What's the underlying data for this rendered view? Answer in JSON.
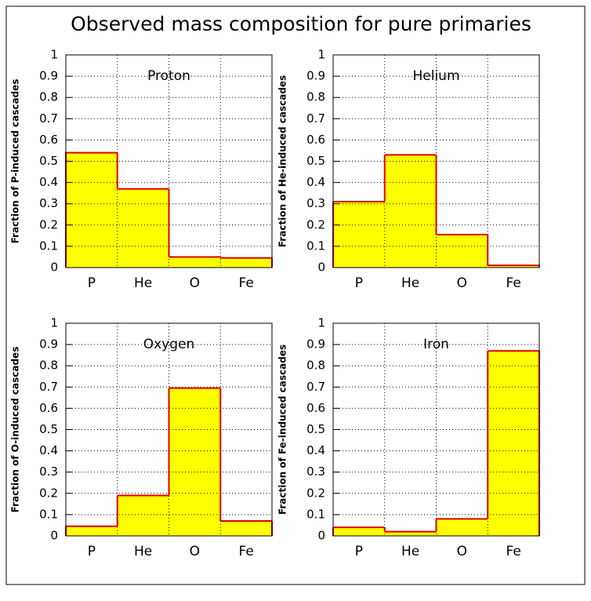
{
  "title": "Observed mass composition for pure primaries",
  "chart_data": [
    {
      "type": "bar",
      "title": "Proton",
      "y_label": "Fraction of P-induced cascades",
      "categories": [
        "P",
        "He",
        "O",
        "Fe"
      ],
      "values": [
        0.54,
        0.37,
        0.05,
        0.045
      ],
      "color": "#ffff00",
      "edge_color": "#e00000",
      "ylim": [
        0,
        1
      ],
      "yticks": [
        0,
        0.1,
        0.2,
        0.3,
        0.4,
        0.5,
        0.6,
        0.7,
        0.8,
        0.9,
        1
      ],
      "grid": true
    },
    {
      "type": "bar",
      "title": "Helium",
      "y_label": "Fraction of He-induced cascades",
      "categories": [
        "P",
        "He",
        "O",
        "Fe"
      ],
      "values": [
        0.31,
        0.53,
        0.155,
        0.01
      ],
      "color": "#ffff00",
      "edge_color": "#e00000",
      "ylim": [
        0,
        1
      ],
      "yticks": [
        0,
        0.1,
        0.2,
        0.3,
        0.4,
        0.5,
        0.6,
        0.7,
        0.8,
        0.9,
        1
      ],
      "grid": true
    },
    {
      "type": "bar",
      "title": "Oxygen",
      "y_label": "Fraction of O-induced cascades",
      "categories": [
        "P",
        "He",
        "O",
        "Fe"
      ],
      "values": [
        0.045,
        0.19,
        0.695,
        0.07
      ],
      "color": "#ffff00",
      "edge_color": "#e00000",
      "ylim": [
        0,
        1
      ],
      "yticks": [
        0,
        0.1,
        0.2,
        0.3,
        0.4,
        0.5,
        0.6,
        0.7,
        0.8,
        0.9,
        1
      ],
      "grid": true
    },
    {
      "type": "bar",
      "title": "Iron",
      "y_label": "Fraction of Fe-induced cascades",
      "categories": [
        "P",
        "He",
        "O",
        "Fe"
      ],
      "values": [
        0.04,
        0.02,
        0.08,
        0.87
      ],
      "color": "#ffff00",
      "edge_color": "#e00000",
      "ylim": [
        0,
        1
      ],
      "yticks": [
        0,
        0.1,
        0.2,
        0.3,
        0.4,
        0.5,
        0.6,
        0.7,
        0.8,
        0.9,
        1
      ],
      "grid": true
    }
  ]
}
